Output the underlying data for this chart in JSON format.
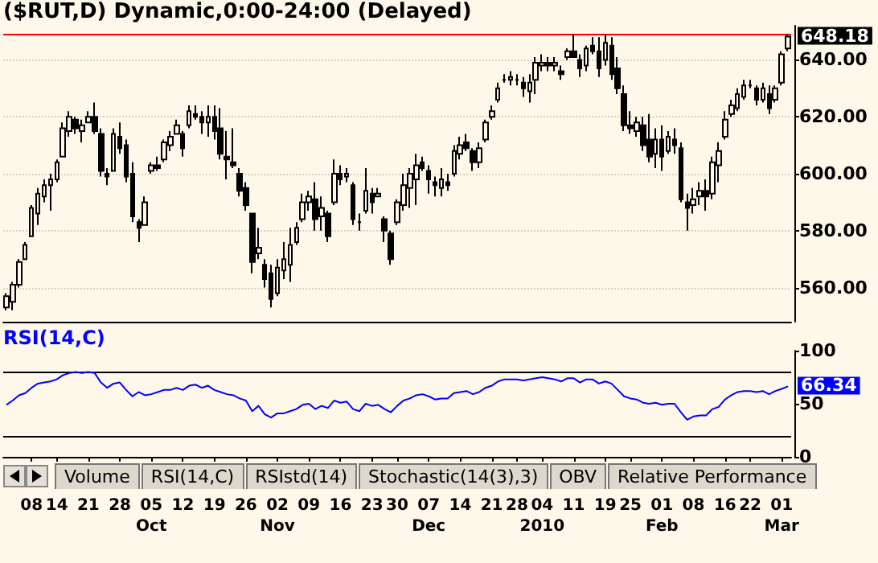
{
  "chart_data": [
    {
      "type": "candlestick",
      "title": "($RUT,D) Dynamic,0:00-24:00 (Delayed)",
      "categories": [
        null,
        null,
        null,
        null,
        null,
        null,
        null,
        null,
        null,
        null,
        null,
        null,
        null,
        null,
        null,
        null,
        null,
        null,
        null,
        null,
        null,
        null,
        null,
        null,
        null,
        null,
        null,
        null,
        null,
        null,
        null,
        null,
        null,
        null,
        null,
        null,
        null,
        null,
        null,
        null,
        null,
        null,
        null,
        null,
        null,
        null,
        null,
        null,
        null,
        null,
        null,
        null,
        null,
        null,
        null,
        null,
        null,
        null,
        null,
        null,
        null,
        null,
        null,
        null,
        null,
        null,
        null,
        null,
        null,
        null,
        null,
        null,
        null,
        null,
        null,
        null,
        null,
        null,
        null,
        null,
        null,
        null,
        null,
        null,
        null,
        null,
        null,
        null,
        null,
        null,
        null,
        null,
        null,
        null,
        null,
        null,
        null,
        null,
        null,
        null,
        null,
        null,
        null,
        null,
        null,
        null,
        null,
        null,
        null,
        null,
        null,
        null,
        null,
        null,
        null,
        null,
        null,
        null,
        null,
        null,
        null,
        null,
        null,
        null,
        null
      ],
      "series": [
        {
          "color": "#000000",
          "ohlc": [
            [
              553,
              558,
              552,
              557
            ],
            [
              555,
              562,
              552,
              561
            ],
            [
              561,
              570,
              560,
              569
            ],
            [
              570,
              576,
              570,
              575
            ],
            [
              578,
              589,
              578,
              588
            ],
            [
              586,
              595,
              582,
              593
            ],
            [
              592,
              598,
              590,
              596
            ],
            [
              596,
              600,
              587,
              598
            ],
            [
              598,
              605,
              597,
              604
            ],
            [
              606,
              618,
              606,
              616
            ],
            [
              615,
              622,
              613,
              620
            ],
            [
              619,
              620,
              614,
              616
            ],
            [
              615,
              619,
              611,
              617
            ],
            [
              618,
              622,
              618,
              620
            ],
            [
              620,
              625,
              614,
              615
            ],
            [
              614,
              616,
              599,
              601
            ],
            [
              600,
              602,
              596,
              599
            ],
            [
              601,
              616,
              601,
              614
            ],
            [
              613,
              618,
              607,
              609
            ],
            [
              610,
              612,
              597,
              599
            ],
            [
              600,
              604,
              583,
              585
            ],
            [
              583,
              584,
              576,
              581
            ],
            [
              582,
              592,
              582,
              590
            ],
            [
              601,
              604,
              600,
              603
            ],
            [
              603,
              606,
              601,
              602
            ],
            [
              605,
              612,
              604,
              611
            ],
            [
              610,
              615,
              608,
              613
            ],
            [
              614,
              619,
              614,
              617
            ],
            [
              614,
              615,
              606,
              609
            ],
            [
              617,
              624,
              616,
              622
            ],
            [
              621,
              624,
              619,
              620
            ],
            [
              620,
              622,
              614,
              618
            ],
            [
              618,
              624,
              613,
              620
            ],
            [
              620,
              624,
              612,
              615
            ],
            [
              616,
              623,
              605,
              607
            ],
            [
              606,
              615,
              598,
              605
            ],
            [
              604,
              616,
              602,
              603
            ],
            [
              600,
              602,
              592,
              594
            ],
            [
              595,
              597,
              587,
              589
            ],
            [
              586,
              586,
              565,
              569
            ],
            [
              572,
              581,
              570,
              574
            ],
            [
              568,
              570,
              560,
              563
            ],
            [
              565,
              568,
              553,
              556
            ],
            [
              558,
              570,
              557,
              567
            ],
            [
              566,
              576,
              563,
              570
            ],
            [
              568,
              581,
              562,
              575
            ],
            [
              576,
              583,
              575,
              581
            ],
            [
              584,
              593,
              583,
              590
            ],
            [
              590,
              594,
              587,
              592
            ],
            [
              591,
              597,
              580,
              584
            ],
            [
              585,
              592,
              580,
              588
            ],
            [
              586,
              587,
              576,
              578
            ],
            [
              590,
              605,
              589,
              600
            ],
            [
              600,
              603,
              596,
              598
            ],
            [
              599,
              602,
              597,
              600
            ],
            [
              596,
              597,
              582,
              584
            ],
            [
              583,
              586,
              580,
              583
            ],
            [
              587,
              602,
              586,
              594
            ],
            [
              593,
              595,
              586,
              590
            ],
            [
              592,
              595,
              592,
              593
            ],
            [
              584,
              585,
              576,
              580
            ],
            [
              579,
              580,
              568,
              570
            ],
            [
              583,
              591,
              582,
              590
            ],
            [
              589,
              600,
              587,
              596
            ],
            [
              595,
              602,
              588,
              600
            ],
            [
              598,
              607,
              589,
              603
            ],
            [
              604,
              606,
              601,
              602
            ],
            [
              601,
              603,
              593,
              598
            ],
            [
              597,
              599,
              592,
              596
            ],
            [
              595,
              602,
              592,
              598
            ],
            [
              597,
              600,
              594,
              596
            ],
            [
              600,
              610,
              599,
              608
            ],
            [
              607,
              613,
              605,
              610
            ],
            [
              611,
              614,
              608,
              609
            ],
            [
              608,
              609,
              601,
              604
            ],
            [
              604,
              611,
              602,
              609
            ],
            [
              612,
              619,
              611,
              618
            ],
            [
              620,
              624,
              619,
              622
            ],
            [
              626,
              632,
              625,
              630
            ],
            [
              633,
              635,
              632,
              633
            ],
            [
              633,
              636,
              631,
              634
            ],
            [
              633,
              635,
              631,
              633
            ],
            [
              632,
              634,
              627,
              630
            ],
            [
              629,
              635,
              625,
              632
            ],
            [
              633,
              641,
              628,
              639
            ],
            [
              638,
              642,
              636,
              639
            ],
            [
              639,
              641,
              636,
              638
            ],
            [
              638,
              641,
              636,
              639
            ],
            [
              636,
              638,
              633,
              635
            ],
            [
              641,
              644,
              640,
              643
            ],
            [
              643,
              649,
              641,
              641
            ],
            [
              640,
              642,
              634,
              637
            ],
            [
              638,
              645,
              636,
              644
            ],
            [
              645,
              648,
              642,
              643
            ],
            [
              643,
              648,
              634,
              637
            ],
            [
              640,
              649,
              638,
              646
            ],
            [
              645,
              648,
              633,
              635
            ],
            [
              637,
              641,
              628,
              630
            ],
            [
              628,
              631,
              615,
              617
            ],
            [
              617,
              622,
              614,
              616
            ],
            [
              615,
              620,
              613,
              618
            ],
            [
              617,
              620,
              608,
              610
            ],
            [
              612,
              621,
              604,
              606
            ],
            [
              607,
              616,
              602,
              612
            ],
            [
              612,
              617,
              601,
              606
            ],
            [
              608,
              615,
              607,
              613
            ],
            [
              612,
              616,
              607,
              610
            ],
            [
              609,
              611,
              590,
              591
            ],
            [
              590,
              593,
              580,
              588
            ],
            [
              589,
              595,
              586,
              591
            ],
            [
              592,
              597,
              589,
              594
            ],
            [
              594,
              598,
              587,
              592
            ],
            [
              593,
              606,
              591,
              604
            ],
            [
              603,
              611,
              597,
              608
            ],
            [
              613,
              622,
              612,
              619
            ],
            [
              621,
              626,
              620,
              624
            ],
            [
              623,
              630,
              622,
              628
            ],
            [
              627,
              633,
              626,
              631
            ],
            [
              631,
              633,
              630,
              631
            ],
            [
              630,
              631,
              624,
              626
            ],
            [
              626,
              632,
              625,
              630
            ],
            [
              628,
              631,
              621,
              623
            ],
            [
              626,
              631,
              625,
              630
            ],
            [
              632,
              643,
              631,
              642
            ],
            [
              644,
              649,
              643,
              648.18
            ]
          ]
        }
      ],
      "ylim": [
        548,
        652
      ],
      "yticks": [
        {
          "value": 560,
          "label": "560.00"
        },
        {
          "value": 580,
          "label": "580.00"
        },
        {
          "value": 600,
          "label": "600.00"
        },
        {
          "value": 620,
          "label": "620.00"
        },
        {
          "value": 640,
          "label": "640.00"
        }
      ],
      "ref_lines": [
        {
          "axis": "y",
          "value": 649,
          "color": "#ff0000"
        }
      ],
      "annotations": [
        "648.18"
      ],
      "grid": "y",
      "tick_labels": "y"
    },
    {
      "type": "line",
      "categories": [
        null,
        null,
        null,
        null,
        "08",
        null,
        null,
        null,
        "14",
        null,
        null,
        null,
        null,
        "21",
        null,
        null,
        null,
        null,
        "28",
        null,
        null,
        null,
        null,
        "05\nOct",
        null,
        null,
        null,
        null,
        "12",
        null,
        null,
        null,
        null,
        "19",
        null,
        null,
        null,
        null,
        "26",
        null,
        null,
        null,
        null,
        "02\nNov",
        null,
        null,
        null,
        null,
        "09",
        null,
        null,
        null,
        null,
        "16",
        null,
        null,
        null,
        null,
        "23",
        null,
        null,
        null,
        "30",
        null,
        null,
        null,
        null,
        "07\nDec",
        null,
        null,
        null,
        null,
        "14",
        null,
        null,
        null,
        null,
        "21",
        null,
        null,
        null,
        "28",
        null,
        null,
        null,
        "04\n2010",
        null,
        null,
        null,
        null,
        "11",
        null,
        null,
        null,
        null,
        "19",
        null,
        null,
        null,
        "25",
        null,
        null,
        null,
        null,
        "01\nFeb",
        null,
        null,
        null,
        null,
        "08",
        null,
        null,
        null,
        null,
        "16",
        null,
        null,
        null,
        "22",
        null,
        null,
        null,
        null,
        "01\nMar",
        null
      ],
      "series": [
        {
          "name": "RSI(14,C)",
          "color": "#0000ff",
          "values": [
            49,
            53,
            58,
            60,
            65,
            69,
            70,
            71,
            73,
            77,
            79,
            80,
            79,
            80,
            79,
            70,
            65,
            69,
            70,
            63,
            57,
            61,
            58,
            59,
            61,
            63,
            63,
            65,
            63,
            67,
            68,
            65,
            67,
            63,
            61,
            59,
            58,
            55,
            53,
            43,
            48,
            40,
            37,
            41,
            41,
            43,
            45,
            49,
            50,
            45,
            48,
            46,
            53,
            51,
            52,
            45,
            43,
            50,
            48,
            49,
            45,
            42,
            48,
            53,
            55,
            58,
            59,
            57,
            54,
            55,
            55,
            60,
            61,
            62,
            59,
            61,
            65,
            67,
            71,
            73,
            73,
            73,
            72,
            73,
            74,
            75,
            74,
            73,
            71,
            74,
            74,
            70,
            73,
            73,
            69,
            71,
            69,
            63,
            57,
            55,
            54,
            51,
            50,
            51,
            49,
            50,
            50,
            42,
            35,
            38,
            39,
            39,
            45,
            47,
            54,
            58,
            61,
            62,
            62,
            61,
            62,
            59,
            62,
            64,
            66.34
          ]
        }
      ],
      "ylim": [
        0,
        100
      ],
      "yticks": [
        0,
        50,
        100
      ],
      "ref_lines": [
        {
          "axis": "y",
          "value": 80,
          "color": "#000000"
        },
        {
          "axis": "y",
          "value": 20,
          "color": "#000000"
        }
      ],
      "annotations": [
        "66.34",
        "Volume",
        "RSI(14,C)",
        "RSIstd(14)",
        "Stochastic(14(3),3)",
        "OBV",
        "Relative Performance"
      ],
      "marker": "none",
      "line_style": "solid"
    }
  ]
}
